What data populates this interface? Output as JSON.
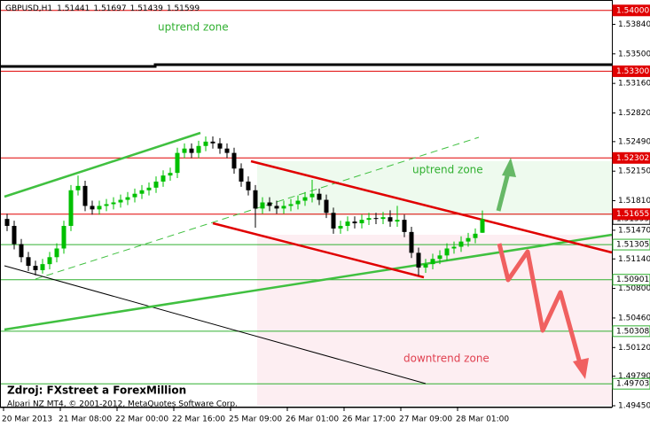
{
  "chart_data": {
    "type": "candlestick",
    "symbol": "GBPUSD,H1",
    "bull_color": "#00c000",
    "bear_color": "#000000",
    "candles": [
      [
        1.516,
        1.5166,
        1.5146,
        1.5152
      ],
      [
        1.5152,
        1.5158,
        1.5125,
        1.5131
      ],
      [
        1.5131,
        1.5137,
        1.511,
        1.5116
      ],
      [
        1.5116,
        1.5122,
        1.51,
        1.5106
      ],
      [
        1.5106,
        1.5112,
        1.5095,
        1.5101
      ],
      [
        1.5101,
        1.5114,
        1.5097,
        1.5108
      ],
      [
        1.5108,
        1.5122,
        1.5102,
        1.5116
      ],
      [
        1.5116,
        1.5132,
        1.511,
        1.5126
      ],
      [
        1.5126,
        1.5158,
        1.512,
        1.5152
      ],
      [
        1.5152,
        1.5199,
        1.5146,
        1.5193
      ],
      [
        1.5193,
        1.521,
        1.5187,
        1.5198
      ],
      [
        1.5198,
        1.5204,
        1.5169,
        1.5175
      ],
      [
        1.5175,
        1.5181,
        1.5165,
        1.5171
      ],
      [
        1.5171,
        1.5181,
        1.5165,
        1.5175
      ],
      [
        1.5175,
        1.5183,
        1.5169,
        1.5177
      ],
      [
        1.5177,
        1.5185,
        1.5171,
        1.5179
      ],
      [
        1.5179,
        1.5188,
        1.5173,
        1.5182
      ],
      [
        1.5182,
        1.5191,
        1.5176,
        1.5185
      ],
      [
        1.5185,
        1.5195,
        1.5179,
        1.5189
      ],
      [
        1.5189,
        1.5199,
        1.5183,
        1.5193
      ],
      [
        1.5193,
        1.5202,
        1.5187,
        1.5196
      ],
      [
        1.5196,
        1.5209,
        1.519,
        1.5203
      ],
      [
        1.5203,
        1.5216,
        1.5197,
        1.521
      ],
      [
        1.521,
        1.5219,
        1.5204,
        1.5213
      ],
      [
        1.5213,
        1.5242,
        1.5207,
        1.5236
      ],
      [
        1.5236,
        1.5247,
        1.523,
        1.5241
      ],
      [
        1.5241,
        1.5247,
        1.523,
        1.5236
      ],
      [
        1.5236,
        1.525,
        1.523,
        1.5244
      ],
      [
        1.5244,
        1.5255,
        1.5238,
        1.5249
      ],
      [
        1.5249,
        1.5255,
        1.5241,
        1.5247
      ],
      [
        1.5247,
        1.5253,
        1.5235,
        1.5241
      ],
      [
        1.5241,
        1.5247,
        1.523,
        1.5236
      ],
      [
        1.5236,
        1.5242,
        1.5212,
        1.5218
      ],
      [
        1.5218,
        1.5224,
        1.5197,
        1.5203
      ],
      [
        1.5203,
        1.5209,
        1.5187,
        1.5193
      ],
      [
        1.5193,
        1.5199,
        1.515,
        1.5172
      ],
      [
        1.5172,
        1.5185,
        1.5166,
        1.5179
      ],
      [
        1.5179,
        1.5185,
        1.5169,
        1.5175
      ],
      [
        1.5175,
        1.5181,
        1.5166,
        1.5172
      ],
      [
        1.5172,
        1.5181,
        1.5166,
        1.5175
      ],
      [
        1.5175,
        1.5183,
        1.5169,
        1.5177
      ],
      [
        1.5177,
        1.5187,
        1.5171,
        1.5181
      ],
      [
        1.5181,
        1.5191,
        1.5175,
        1.5185
      ],
      [
        1.5185,
        1.5205,
        1.5179,
        1.5189
      ],
      [
        1.5189,
        1.5195,
        1.5176,
        1.5182
      ],
      [
        1.5182,
        1.5188,
        1.5161,
        1.5167
      ],
      [
        1.5167,
        1.5173,
        1.5143,
        1.5149
      ],
      [
        1.5149,
        1.5158,
        1.5143,
        1.5152
      ],
      [
        1.5152,
        1.5163,
        1.5146,
        1.5157
      ],
      [
        1.5157,
        1.5163,
        1.5149,
        1.5155
      ],
      [
        1.5155,
        1.5165,
        1.5149,
        1.5159
      ],
      [
        1.5159,
        1.5167,
        1.5153,
        1.5161
      ],
      [
        1.5161,
        1.5167,
        1.5154,
        1.516
      ],
      [
        1.516,
        1.5168,
        1.5154,
        1.5162
      ],
      [
        1.5162,
        1.517,
        1.5151,
        1.5157
      ],
      [
        1.5157,
        1.5175,
        1.5151,
        1.5159
      ],
      [
        1.5159,
        1.5165,
        1.5139,
        1.5145
      ],
      [
        1.5145,
        1.5151,
        1.5115,
        1.5121
      ],
      [
        1.5121,
        1.5127,
        1.5095,
        1.5104
      ],
      [
        1.5104,
        1.5114,
        1.5098,
        1.5108
      ],
      [
        1.5108,
        1.512,
        1.5102,
        1.5114
      ],
      [
        1.5114,
        1.5124,
        1.5108,
        1.5118
      ],
      [
        1.5118,
        1.5132,
        1.5112,
        1.5126
      ],
      [
        1.5126,
        1.5134,
        1.512,
        1.5128
      ],
      [
        1.5128,
        1.514,
        1.5122,
        1.5134
      ],
      [
        1.5134,
        1.5144,
        1.5128,
        1.5138
      ],
      [
        1.5138,
        1.5149,
        1.5132,
        1.5143
      ],
      [
        1.51441,
        1.51697,
        1.51439,
        1.51599
      ]
    ],
    "x_labels": [
      "20 Mar 2013",
      "21 Mar 08:00",
      "22 Mar 00:00",
      "22 Mar 16:00",
      "25 Mar 09:00",
      "26 Mar 01:00",
      "26 Mar 17:00",
      "27 Mar 09:00",
      "28 Mar 01:00"
    ],
    "ylim": [
      1.4945,
      1.5412
    ],
    "yticks": [
      {
        "value": 1.5384,
        "label": "1.53840"
      },
      {
        "value": 1.535,
        "label": "1.53500"
      },
      {
        "value": 1.5316,
        "label": "1.53160"
      },
      {
        "value": 1.5282,
        "label": "1.52820"
      },
      {
        "value": 1.5249,
        "label": "1.52490"
      },
      {
        "value": 1.5215,
        "label": "1.52150"
      },
      {
        "value": 1.5181,
        "label": "1.51810"
      },
      {
        "value": 1.5147,
        "label": "1.51470"
      },
      {
        "value": 1.5114,
        "label": "1.51140"
      },
      {
        "value": 1.508,
        "label": "1.50800"
      },
      {
        "value": 1.5046,
        "label": "1.50460"
      },
      {
        "value": 1.5012,
        "label": "1.50120"
      },
      {
        "value": 1.4979,
        "label": "1.49790"
      },
      {
        "value": 1.4945,
        "label": "1.49450"
      }
    ],
    "levels": [
      {
        "value": 1.54,
        "label": "1.54000",
        "color": "#e00000"
      },
      {
        "value": 1.533,
        "label": "1.53300",
        "color": "#e00000"
      },
      {
        "value": 1.52302,
        "label": "1.52302",
        "color": "#e00000"
      },
      {
        "value": 1.51655,
        "label": "1.51655",
        "color": "#e00000"
      },
      {
        "value": 1.51305,
        "label": "1.51305",
        "color": "#30b030"
      },
      {
        "value": 1.50901,
        "label": "1.50901",
        "color": "#30b030"
      },
      {
        "value": 1.50308,
        "label": "1.50308",
        "color": "#30b030"
      },
      {
        "value": 1.49703,
        "label": "1.49703",
        "color": "#30b030"
      }
    ],
    "annotations": [
      "uptrend zone",
      "uptrend zone",
      "downtrend zone"
    ],
    "source": "Zdroj: FXstreet a ForexMillion",
    "copyright": "Alpari NZ MT4, © 2001-2012, MetaQuotes Software Corp."
  }
}
